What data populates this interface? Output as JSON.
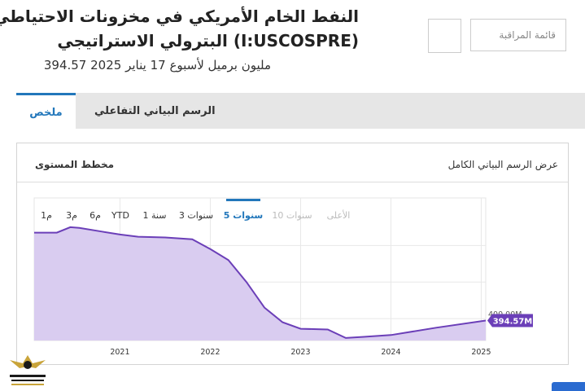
{
  "header": {
    "title_line1": "النفط الخام الأمريكي في مخزونات الاحتياطي",
    "title_line2": "البترولي الاستراتيجي (I:USCOSPRE)",
    "subtitle": "394.57 مليون برميل لأسبوع 17 يناير 2025",
    "watchlist_label": "قائمة المراقبة"
  },
  "tabs": [
    {
      "label": "ملخص",
      "active": true
    },
    {
      "label": "الرسم البياني التفاعلي",
      "active": false
    }
  ],
  "panel": {
    "full_chart_link": "عرض الرسم البياني الكامل",
    "level_chart_label": "مخطط المستوى"
  },
  "ranges": [
    {
      "label": "1م",
      "state": "normal"
    },
    {
      "label": "3م",
      "state": "normal"
    },
    {
      "label": "6م",
      "state": "normal"
    },
    {
      "label": "YTD",
      "state": "normal"
    },
    {
      "label": "1 سنة",
      "state": "normal"
    },
    {
      "label": "3 سنوات",
      "state": "normal"
    },
    {
      "label": "5 سنوات",
      "state": "active"
    },
    {
      "label": "10 سنوات",
      "state": "disabled"
    },
    {
      "label": "الأعلى",
      "state": "disabled"
    }
  ],
  "chart_data": {
    "type": "area",
    "x_ticks": [
      "2021",
      "2022",
      "2023",
      "2024",
      "2025"
    ],
    "x": [
      2020.05,
      2020.3,
      2020.45,
      2020.55,
      2020.8,
      2021.0,
      2021.2,
      2021.5,
      2021.8,
      2022.0,
      2022.2,
      2022.4,
      2022.6,
      2022.8,
      2023.0,
      2023.3,
      2023.5,
      2023.7,
      2024.0,
      2024.5,
      2025.05
    ],
    "y": [
      635,
      635,
      650,
      648,
      638,
      630,
      624,
      622,
      617,
      590,
      560,
      500,
      430,
      390,
      372,
      370,
      347,
      350,
      355,
      375,
      394.57
    ],
    "ylim": [
      340,
      730
    ],
    "max_gridline_label": "400.00M",
    "latest_callout": "394.57M",
    "series_color": "#6b3fb8",
    "fill_color": "#d9ccf0"
  }
}
